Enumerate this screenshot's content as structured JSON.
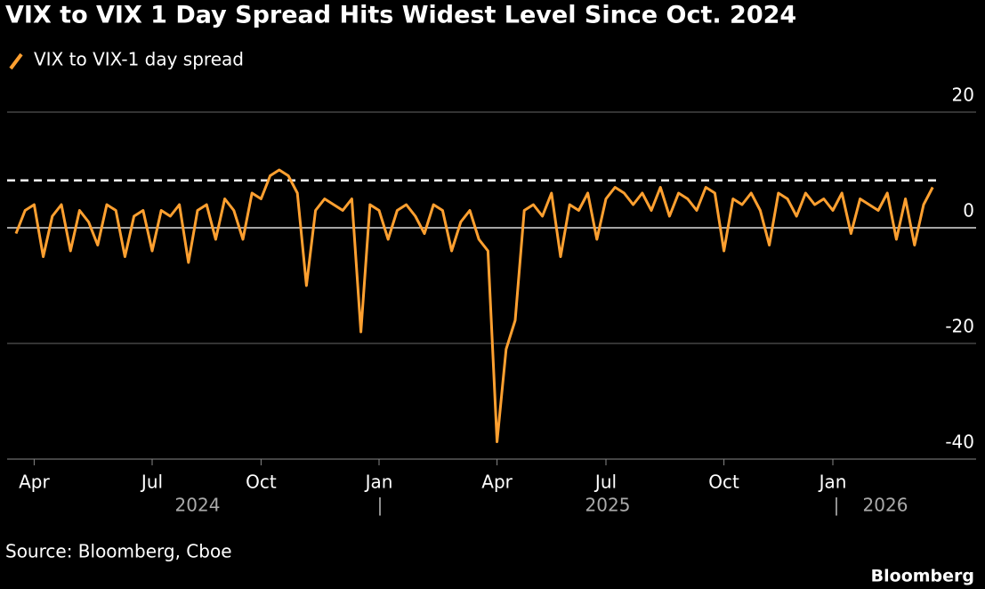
{
  "chart_data": {
    "type": "line",
    "title": "VIX to VIX 1 Day Spread Hits Widest Level Since Oct. 2024",
    "source": "Source: Bloomberg, Cboe",
    "brand": "Bloomberg",
    "categories": [
      null,
      null,
      "Apr",
      null,
      null,
      null,
      null,
      null,
      null,
      null,
      null,
      null,
      null,
      null,
      null,
      "Jul",
      null,
      null,
      null,
      null,
      null,
      null,
      null,
      null,
      null,
      null,
      null,
      "Oct",
      null,
      null,
      null,
      null,
      null,
      null,
      null,
      null,
      null,
      null,
      null,
      null,
      "Jan",
      null,
      null,
      null,
      null,
      null,
      null,
      null,
      null,
      null,
      null,
      null,
      null,
      "Apr",
      null,
      null,
      null,
      null,
      null,
      null,
      null,
      null,
      null,
      null,
      null,
      "Jul",
      null,
      null,
      null,
      null,
      null,
      null,
      null,
      null,
      null,
      null,
      null,
      null,
      "Oct",
      null,
      null,
      null,
      null,
      null,
      null,
      null,
      null,
      null,
      null,
      null,
      "Jan",
      null,
      null,
      null,
      null,
      null,
      null,
      null,
      null,
      null,
      null,
      null
    ],
    "year_labels": [
      "2024",
      "2025",
      "2026"
    ],
    "year_separator": "|",
    "series": [
      {
        "name": "VIX to VIX-1 day spread",
        "color": "#ffa030",
        "values": [
          -1,
          3,
          4,
          -5,
          2,
          4,
          -4,
          3,
          1,
          -3,
          4,
          3,
          -5,
          2,
          3,
          -4,
          3,
          2,
          4,
          -6,
          3,
          4,
          -2,
          5,
          3,
          -2,
          6,
          5,
          9,
          10,
          9,
          6,
          -10,
          3,
          5,
          4,
          3,
          5,
          -18,
          4,
          3,
          -2,
          3,
          4,
          2,
          -1,
          4,
          3,
          -4,
          1,
          3,
          -2,
          -4,
          -37,
          -21,
          -16,
          3,
          4,
          2,
          6,
          -5,
          4,
          3,
          6,
          -2,
          5,
          7,
          6,
          4,
          6,
          3,
          7,
          2,
          6,
          5,
          3,
          7,
          6,
          -4,
          5,
          4,
          6,
          3,
          -3,
          6,
          5,
          2,
          6,
          4,
          5,
          3,
          6,
          -1,
          5,
          4,
          3,
          6,
          -2,
          5,
          -3,
          4,
          7
        ]
      }
    ],
    "reference_line": 8.2,
    "ylim": [
      -40,
      20
    ],
    "yticks": [
      20,
      0,
      -20,
      -40
    ],
    "grid": true
  }
}
